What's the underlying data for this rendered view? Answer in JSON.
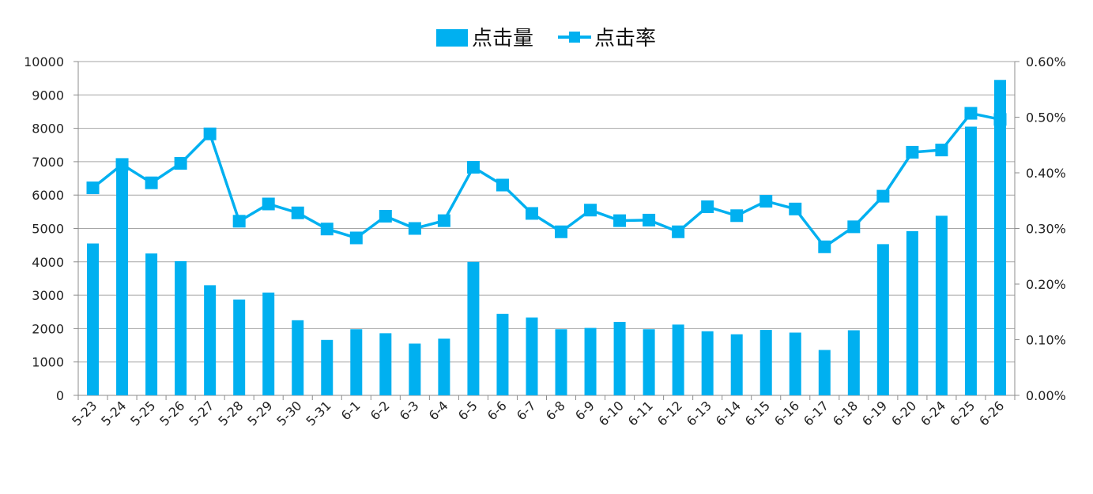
{
  "chart_data": {
    "type": "bar",
    "categories": [
      "5-23",
      "5-24",
      "5-25",
      "5-26",
      "5-27",
      "5-28",
      "5-29",
      "5-30",
      "5-31",
      "6-1",
      "6-2",
      "6-3",
      "6-4",
      "6-5",
      "6-6",
      "6-7",
      "6-8",
      "6-9",
      "6-10",
      "6-11",
      "6-12",
      "6-13",
      "6-14",
      "6-15",
      "6-16",
      "6-17",
      "6-18",
      "6-19",
      "6-20",
      "6-24",
      "6-25",
      "6-26"
    ],
    "series": [
      {
        "name": "点击量",
        "type": "bar",
        "axis": "left",
        "color": "#00b0f0",
        "values": [
          4550,
          7000,
          4250,
          4020,
          3300,
          2870,
          3080,
          2250,
          1660,
          1980,
          1860,
          1550,
          1700,
          4000,
          2440,
          2330,
          1980,
          2020,
          2200,
          1980,
          2120,
          1920,
          1830,
          1960,
          1880,
          1360,
          1950,
          4530,
          4920,
          5380,
          8050,
          9450
        ]
      },
      {
        "name": "点击率",
        "type": "line",
        "axis": "right",
        "color": "#00b0f0",
        "marker": "square",
        "values": [
          0.00373,
          0.00415,
          0.00382,
          0.00417,
          0.0047,
          0.00313,
          0.00344,
          0.00328,
          0.00299,
          0.00283,
          0.00322,
          0.003,
          0.00314,
          0.0041,
          0.00378,
          0.00327,
          0.00294,
          0.00333,
          0.00314,
          0.00315,
          0.00294,
          0.00339,
          0.00323,
          0.00349,
          0.00335,
          0.00267,
          0.00303,
          0.00358,
          0.00437,
          0.00441,
          0.00507,
          0.00496
        ]
      }
    ],
    "y_left": {
      "ylim": [
        0,
        10000
      ],
      "ticks": [
        "0",
        "1000",
        "2000",
        "3000",
        "4000",
        "5000",
        "6000",
        "7000",
        "8000",
        "9000",
        "10000"
      ]
    },
    "y_right": {
      "ylim": [
        0,
        0.006
      ],
      "ticks": [
        "0.00%",
        "0.10%",
        "0.20%",
        "0.30%",
        "0.40%",
        "0.50%",
        "0.60%"
      ]
    },
    "grid": true,
    "legend": {
      "position": "top-center",
      "entries": [
        "点击量",
        "点击率"
      ]
    },
    "title": "",
    "xlabel": "",
    "ylabel": ""
  }
}
